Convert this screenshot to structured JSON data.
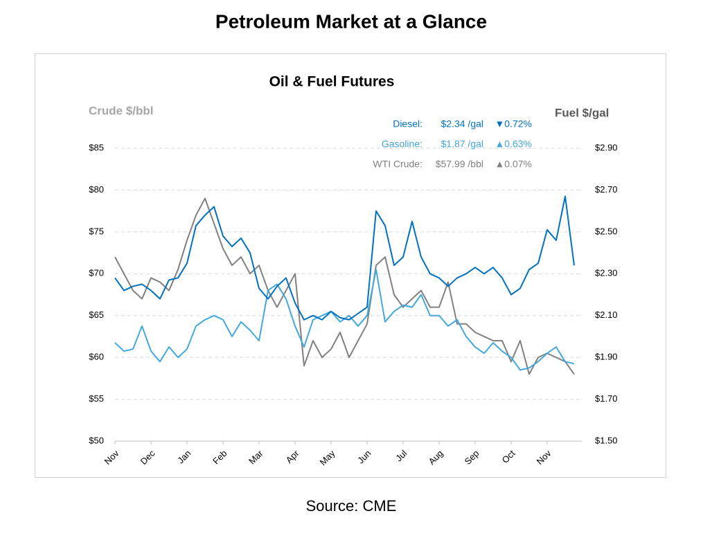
{
  "page_title": "Petroleum Market at a Glance",
  "source": "Source: CME",
  "chart_data": {
    "type": "line",
    "title": "Oil & Fuel Futures",
    "ylabel": "Crude $/bbl",
    "y2label": "Fuel $/gal",
    "grid": true,
    "categories": [
      "Nov",
      null,
      null,
      null,
      "Dec",
      null,
      null,
      null,
      "Jan",
      null,
      null,
      null,
      "Feb",
      null,
      null,
      null,
      "Mar",
      null,
      null,
      null,
      "Apr",
      null,
      null,
      null,
      "May",
      null,
      null,
      null,
      "Jun",
      null,
      null,
      null,
      "Jul",
      null,
      null,
      null,
      "Aug",
      null,
      null,
      null,
      "Sep",
      null,
      null,
      null,
      "Oct",
      null,
      null,
      null,
      "Nov",
      null,
      null,
      null
    ],
    "ylim": [
      50,
      85
    ],
    "yticks": [
      {
        "value": 50,
        "label": "$50"
      },
      {
        "value": 55,
        "label": "$55"
      },
      {
        "value": 60,
        "label": "$60"
      },
      {
        "value": 65,
        "label": "$65"
      },
      {
        "value": 70,
        "label": "$70"
      },
      {
        "value": 75,
        "label": "$75"
      },
      {
        "value": 80,
        "label": "$80"
      },
      {
        "value": 85,
        "label": "$85"
      }
    ],
    "y2lim": [
      1.5,
      2.9
    ],
    "y2ticks": [
      {
        "value": 1.5,
        "label": "$1.50"
      },
      {
        "value": 1.7,
        "label": "$1.70"
      },
      {
        "value": 1.9,
        "label": "$1.90"
      },
      {
        "value": 2.1,
        "label": "$2.10"
      },
      {
        "value": 2.3,
        "label": "$2.30"
      },
      {
        "value": 2.5,
        "label": "$2.50"
      },
      {
        "value": 2.7,
        "label": "$2.70"
      },
      {
        "value": 2.9,
        "label": "$2.90"
      }
    ],
    "series": [
      {
        "name": "Diesel:",
        "price": "$2.34 /gal",
        "change": "▼0.72%",
        "color": "#0070c0",
        "axis": "y2",
        "values": [
          2.28,
          2.22,
          2.24,
          2.25,
          2.22,
          2.18,
          2.27,
          2.28,
          2.35,
          2.53,
          2.58,
          2.62,
          2.48,
          2.43,
          2.47,
          2.4,
          2.23,
          2.18,
          2.24,
          2.28,
          2.16,
          2.08,
          2.1,
          2.08,
          2.12,
          2.09,
          2.08,
          2.11,
          2.14,
          2.6,
          2.53,
          2.34,
          2.38,
          2.55,
          2.38,
          2.3,
          2.28,
          2.24,
          2.28,
          2.3,
          2.33,
          2.3,
          2.33,
          2.28,
          2.2,
          2.23,
          2.32,
          2.35,
          2.51,
          2.46,
          2.67,
          2.34
        ]
      },
      {
        "name": "Gasoline:",
        "price": "$1.87 /gal",
        "change": "▲0.63%",
        "color": "#41a8dd",
        "axis": "y2",
        "values": [
          1.97,
          1.93,
          1.94,
          2.05,
          1.93,
          1.88,
          1.95,
          1.9,
          1.94,
          2.05,
          2.08,
          2.1,
          2.08,
          2.0,
          2.07,
          2.03,
          1.98,
          2.22,
          2.25,
          2.18,
          2.05,
          1.95,
          2.08,
          2.1,
          2.12,
          2.07,
          2.1,
          2.05,
          2.1,
          2.32,
          2.07,
          2.12,
          2.15,
          2.14,
          2.2,
          2.1,
          2.1,
          2.05,
          2.08,
          2.0,
          1.95,
          1.92,
          1.97,
          1.93,
          1.9,
          1.84,
          1.85,
          1.88,
          1.92,
          1.95,
          1.88,
          1.87
        ]
      },
      {
        "name": "WTI Crude:",
        "price": "$57.99 /bbl",
        "change": "▲0.07%",
        "color": "#808080",
        "values": [
          72,
          70,
          68,
          67,
          69.5,
          69,
          68,
          70.5,
          74,
          77,
          79,
          76,
          73,
          71,
          72,
          70,
          71,
          68,
          66,
          68,
          70,
          59,
          62,
          60,
          61,
          63,
          60,
          62,
          64,
          71,
          72,
          67.5,
          66,
          67,
          68,
          66,
          66,
          69,
          64,
          64,
          63,
          62.5,
          62,
          62,
          59.5,
          62,
          58,
          60,
          60.5,
          60,
          59.5,
          57.99
        ]
      }
    ]
  }
}
